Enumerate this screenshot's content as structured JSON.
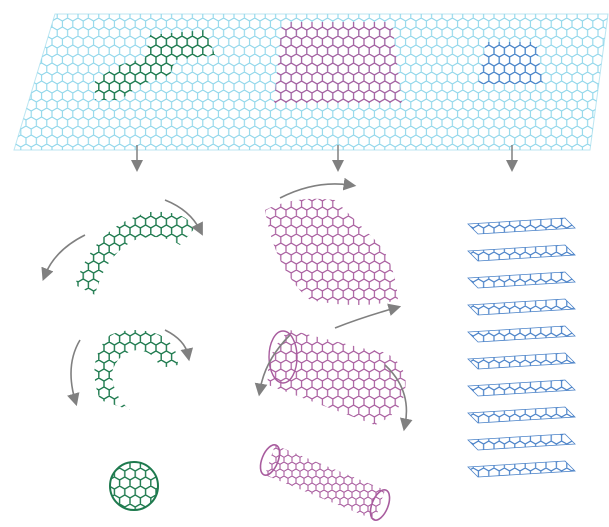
{
  "figure": {
    "description_visible_text": "",
    "colors": {
      "graphene": "#8fd6ea",
      "buckyball": "#1e7a4e",
      "nanotube": "#a85c9e",
      "graphite": "#4a82c8",
      "arrow": "#808080",
      "background": "#ffffff"
    },
    "icons": {
      "sheet": "graphene-sheet-icon",
      "arrow": "down-arrow-icon",
      "curl": "curved-arrow-icon"
    }
  }
}
